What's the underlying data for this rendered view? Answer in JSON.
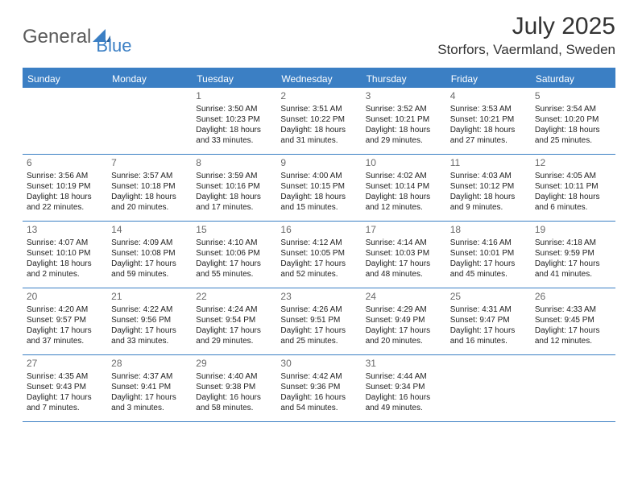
{
  "brand": {
    "general": "General",
    "blue": "Blue"
  },
  "title": "July 2025",
  "location": "Storfors, Vaermland, Sweden",
  "colors": {
    "accent": "#3b7fc4",
    "text": "#222222",
    "muted": "#6a6a6a",
    "bg": "#ffffff",
    "header_text": "#ffffff"
  },
  "fonts": {
    "title_size": 30,
    "location_size": 17,
    "header_size": 12,
    "cell_size": 10,
    "daynum_size": 12
  },
  "weekdays": [
    "Sunday",
    "Monday",
    "Tuesday",
    "Wednesday",
    "Thursday",
    "Friday",
    "Saturday"
  ],
  "calendar": {
    "type": "table",
    "columns": 7,
    "rows": [
      [
        null,
        null,
        {
          "n": "1",
          "sr": "Sunrise: 3:50 AM",
          "ss": "Sunset: 10:23 PM",
          "dl": "Daylight: 18 hours and 33 minutes."
        },
        {
          "n": "2",
          "sr": "Sunrise: 3:51 AM",
          "ss": "Sunset: 10:22 PM",
          "dl": "Daylight: 18 hours and 31 minutes."
        },
        {
          "n": "3",
          "sr": "Sunrise: 3:52 AM",
          "ss": "Sunset: 10:21 PM",
          "dl": "Daylight: 18 hours and 29 minutes."
        },
        {
          "n": "4",
          "sr": "Sunrise: 3:53 AM",
          "ss": "Sunset: 10:21 PM",
          "dl": "Daylight: 18 hours and 27 minutes."
        },
        {
          "n": "5",
          "sr": "Sunrise: 3:54 AM",
          "ss": "Sunset: 10:20 PM",
          "dl": "Daylight: 18 hours and 25 minutes."
        }
      ],
      [
        {
          "n": "6",
          "sr": "Sunrise: 3:56 AM",
          "ss": "Sunset: 10:19 PM",
          "dl": "Daylight: 18 hours and 22 minutes."
        },
        {
          "n": "7",
          "sr": "Sunrise: 3:57 AM",
          "ss": "Sunset: 10:18 PM",
          "dl": "Daylight: 18 hours and 20 minutes."
        },
        {
          "n": "8",
          "sr": "Sunrise: 3:59 AM",
          "ss": "Sunset: 10:16 PM",
          "dl": "Daylight: 18 hours and 17 minutes."
        },
        {
          "n": "9",
          "sr": "Sunrise: 4:00 AM",
          "ss": "Sunset: 10:15 PM",
          "dl": "Daylight: 18 hours and 15 minutes."
        },
        {
          "n": "10",
          "sr": "Sunrise: 4:02 AM",
          "ss": "Sunset: 10:14 PM",
          "dl": "Daylight: 18 hours and 12 minutes."
        },
        {
          "n": "11",
          "sr": "Sunrise: 4:03 AM",
          "ss": "Sunset: 10:12 PM",
          "dl": "Daylight: 18 hours and 9 minutes."
        },
        {
          "n": "12",
          "sr": "Sunrise: 4:05 AM",
          "ss": "Sunset: 10:11 PM",
          "dl": "Daylight: 18 hours and 6 minutes."
        }
      ],
      [
        {
          "n": "13",
          "sr": "Sunrise: 4:07 AM",
          "ss": "Sunset: 10:10 PM",
          "dl": "Daylight: 18 hours and 2 minutes."
        },
        {
          "n": "14",
          "sr": "Sunrise: 4:09 AM",
          "ss": "Sunset: 10:08 PM",
          "dl": "Daylight: 17 hours and 59 minutes."
        },
        {
          "n": "15",
          "sr": "Sunrise: 4:10 AM",
          "ss": "Sunset: 10:06 PM",
          "dl": "Daylight: 17 hours and 55 minutes."
        },
        {
          "n": "16",
          "sr": "Sunrise: 4:12 AM",
          "ss": "Sunset: 10:05 PM",
          "dl": "Daylight: 17 hours and 52 minutes."
        },
        {
          "n": "17",
          "sr": "Sunrise: 4:14 AM",
          "ss": "Sunset: 10:03 PM",
          "dl": "Daylight: 17 hours and 48 minutes."
        },
        {
          "n": "18",
          "sr": "Sunrise: 4:16 AM",
          "ss": "Sunset: 10:01 PM",
          "dl": "Daylight: 17 hours and 45 minutes."
        },
        {
          "n": "19",
          "sr": "Sunrise: 4:18 AM",
          "ss": "Sunset: 9:59 PM",
          "dl": "Daylight: 17 hours and 41 minutes."
        }
      ],
      [
        {
          "n": "20",
          "sr": "Sunrise: 4:20 AM",
          "ss": "Sunset: 9:57 PM",
          "dl": "Daylight: 17 hours and 37 minutes."
        },
        {
          "n": "21",
          "sr": "Sunrise: 4:22 AM",
          "ss": "Sunset: 9:56 PM",
          "dl": "Daylight: 17 hours and 33 minutes."
        },
        {
          "n": "22",
          "sr": "Sunrise: 4:24 AM",
          "ss": "Sunset: 9:54 PM",
          "dl": "Daylight: 17 hours and 29 minutes."
        },
        {
          "n": "23",
          "sr": "Sunrise: 4:26 AM",
          "ss": "Sunset: 9:51 PM",
          "dl": "Daylight: 17 hours and 25 minutes."
        },
        {
          "n": "24",
          "sr": "Sunrise: 4:29 AM",
          "ss": "Sunset: 9:49 PM",
          "dl": "Daylight: 17 hours and 20 minutes."
        },
        {
          "n": "25",
          "sr": "Sunrise: 4:31 AM",
          "ss": "Sunset: 9:47 PM",
          "dl": "Daylight: 17 hours and 16 minutes."
        },
        {
          "n": "26",
          "sr": "Sunrise: 4:33 AM",
          "ss": "Sunset: 9:45 PM",
          "dl": "Daylight: 17 hours and 12 minutes."
        }
      ],
      [
        {
          "n": "27",
          "sr": "Sunrise: 4:35 AM",
          "ss": "Sunset: 9:43 PM",
          "dl": "Daylight: 17 hours and 7 minutes."
        },
        {
          "n": "28",
          "sr": "Sunrise: 4:37 AM",
          "ss": "Sunset: 9:41 PM",
          "dl": "Daylight: 17 hours and 3 minutes."
        },
        {
          "n": "29",
          "sr": "Sunrise: 4:40 AM",
          "ss": "Sunset: 9:38 PM",
          "dl": "Daylight: 16 hours and 58 minutes."
        },
        {
          "n": "30",
          "sr": "Sunrise: 4:42 AM",
          "ss": "Sunset: 9:36 PM",
          "dl": "Daylight: 16 hours and 54 minutes."
        },
        {
          "n": "31",
          "sr": "Sunrise: 4:44 AM",
          "ss": "Sunset: 9:34 PM",
          "dl": "Daylight: 16 hours and 49 minutes."
        },
        null,
        null
      ]
    ]
  }
}
